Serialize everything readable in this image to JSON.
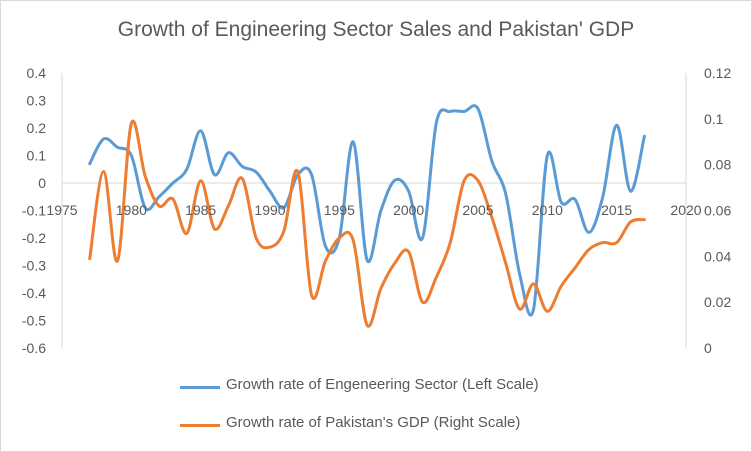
{
  "chart_data": {
    "type": "line",
    "title": "Growth of Engineering Sector Sales and Pakistan' GDP",
    "x_ticks": [
      1975,
      1980,
      1985,
      1990,
      1995,
      2000,
      2005,
      2010,
      2015,
      2020
    ],
    "x_range": [
      1975,
      2020
    ],
    "y_left": {
      "range": [
        -0.6,
        0.4
      ],
      "ticks": [
        0.4,
        0.3,
        0.2,
        0.1,
        0,
        -0.1,
        -0.2,
        -0.3,
        -0.4,
        -0.5,
        -0.6
      ]
    },
    "y_right": {
      "range": [
        0,
        0.12
      ],
      "ticks": [
        0.12,
        0.1,
        0.08,
        0.06,
        0.04,
        0.02,
        0
      ]
    },
    "gridlines": false,
    "legend_position": "bottom",
    "series": [
      {
        "name": "Growth rate of Engeneering Sector (Left Scale)",
        "axis": "left",
        "color": "#5b9bd5",
        "x": [
          1977,
          1978,
          1979,
          1980,
          1981,
          1982,
          1983,
          1984,
          1985,
          1986,
          1987,
          1988,
          1989,
          1990,
          1991,
          1992,
          1993,
          1994,
          1995,
          1996,
          1997,
          1998,
          1999,
          2000,
          2001,
          2002,
          2003,
          2004,
          2005,
          2006,
          2007,
          2008,
          2009,
          2010,
          2011,
          2012,
          2013,
          2014,
          2015,
          2016,
          2017
        ],
        "y": [
          0.07,
          0.16,
          0.13,
          0.1,
          -0.09,
          -0.05,
          0.0,
          0.05,
          0.19,
          0.03,
          0.11,
          0.06,
          0.04,
          -0.03,
          -0.09,
          0.03,
          0.03,
          -0.23,
          -0.2,
          0.15,
          -0.28,
          -0.1,
          0.01,
          -0.03,
          -0.2,
          0.22,
          0.26,
          0.26,
          0.27,
          0.08,
          -0.04,
          -0.33,
          -0.46,
          0.1,
          -0.07,
          -0.06,
          -0.18,
          -0.05,
          0.21,
          -0.03,
          0.17
        ]
      },
      {
        "name": "Growth rate of Pakistan's GDP (Right Scale)",
        "axis": "right",
        "color": "#ed7d31",
        "x": [
          1977,
          1978,
          1979,
          1980,
          1981,
          1982,
          1983,
          1984,
          1985,
          1986,
          1987,
          1988,
          1989,
          1990,
          1991,
          1992,
          1993,
          1994,
          1995,
          1996,
          1997,
          1998,
          1999,
          2000,
          2001,
          2002,
          2003,
          2004,
          2005,
          2006,
          2007,
          2008,
          2009,
          2010,
          2011,
          2012,
          2013,
          2014,
          2015,
          2016,
          2017
        ],
        "y": [
          0.039,
          0.077,
          0.038,
          0.098,
          0.075,
          0.062,
          0.065,
          0.05,
          0.073,
          0.052,
          0.062,
          0.074,
          0.048,
          0.044,
          0.051,
          0.077,
          0.023,
          0.038,
          0.048,
          0.047,
          0.01,
          0.026,
          0.037,
          0.042,
          0.02,
          0.031,
          0.046,
          0.073,
          0.073,
          0.057,
          0.037,
          0.017,
          0.028,
          0.016,
          0.027,
          0.035,
          0.043,
          0.046,
          0.046,
          0.055,
          0.056
        ]
      }
    ]
  }
}
